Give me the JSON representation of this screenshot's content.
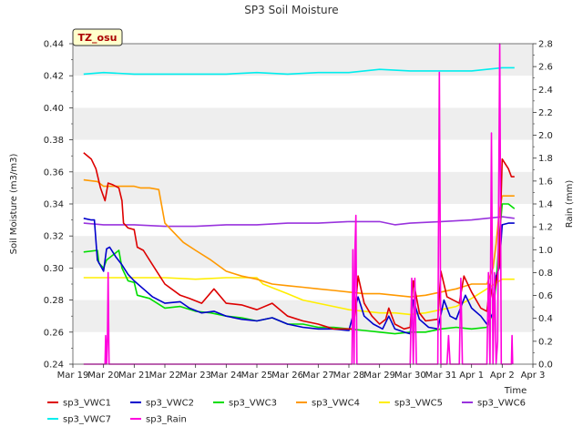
{
  "chart_data": {
    "type": "line",
    "title": "SP3 Soil Moisture",
    "badge": "TZ_osu",
    "xlabel": "Time",
    "ylabel_left": "Soil Moisture (m3/m3)",
    "ylabel_right": "Rain (mm)",
    "x_ticks": [
      "Mar 19",
      "Mar 20",
      "Mar 21",
      "Mar 22",
      "Mar 23",
      "Mar 24",
      "Mar 25",
      "Mar 26",
      "Mar 27",
      "Mar 28",
      "Mar 29",
      "Mar 30",
      "Mar 31",
      "Apr 1",
      "Apr 2",
      "Apr 3"
    ],
    "xlim": [
      0,
      15
    ],
    "ylim_left": [
      0.24,
      0.44
    ],
    "y_ticks_left": [
      "0.24",
      "0.26",
      "0.28",
      "0.30",
      "0.32",
      "0.34",
      "0.36",
      "0.38",
      "0.40",
      "0.42",
      "0.44"
    ],
    "ylim_right": [
      0.0,
      2.8
    ],
    "y_ticks_right": [
      "0.0",
      "0.2",
      "0.4",
      "0.6",
      "0.8",
      "1.0",
      "1.2",
      "1.4",
      "1.6",
      "1.8",
      "2.0",
      "2.2",
      "2.4",
      "2.6",
      "2.8"
    ],
    "grid": "horizontal bands",
    "legend_position": "bottom",
    "series": [
      {
        "name": "sp3_VWC1",
        "color": "#dd0000",
        "axis": "left",
        "points": [
          [
            0.35,
            0.372
          ],
          [
            0.6,
            0.368
          ],
          [
            0.75,
            0.362
          ],
          [
            0.9,
            0.35
          ],
          [
            1.05,
            0.342
          ],
          [
            1.15,
            0.353
          ],
          [
            1.3,
            0.352
          ],
          [
            1.5,
            0.35
          ],
          [
            1.6,
            0.342
          ],
          [
            1.65,
            0.328
          ],
          [
            1.8,
            0.325
          ],
          [
            2.0,
            0.324
          ],
          [
            2.1,
            0.313
          ],
          [
            2.3,
            0.311
          ],
          [
            2.6,
            0.302
          ],
          [
            3.0,
            0.29
          ],
          [
            3.5,
            0.283
          ],
          [
            3.8,
            0.281
          ],
          [
            4.2,
            0.278
          ],
          [
            4.6,
            0.287
          ],
          [
            5.0,
            0.278
          ],
          [
            5.5,
            0.277
          ],
          [
            6.0,
            0.274
          ],
          [
            6.5,
            0.278
          ],
          [
            7.0,
            0.27
          ],
          [
            7.5,
            0.267
          ],
          [
            8.0,
            0.265
          ],
          [
            8.5,
            0.262
          ],
          [
            9.0,
            0.262
          ],
          [
            9.15,
            0.262
          ],
          [
            9.3,
            0.295
          ],
          [
            9.5,
            0.278
          ],
          [
            9.75,
            0.27
          ],
          [
            10.0,
            0.265
          ],
          [
            10.2,
            0.268
          ],
          [
            10.3,
            0.275
          ],
          [
            10.5,
            0.265
          ],
          [
            10.8,
            0.262
          ],
          [
            11.0,
            0.263
          ],
          [
            11.1,
            0.292
          ],
          [
            11.3,
            0.272
          ],
          [
            11.5,
            0.267
          ],
          [
            11.9,
            0.268
          ],
          [
            12.0,
            0.298
          ],
          [
            12.2,
            0.282
          ],
          [
            12.4,
            0.28
          ],
          [
            12.6,
            0.278
          ],
          [
            12.75,
            0.295
          ],
          [
            13.0,
            0.285
          ],
          [
            13.3,
            0.275
          ],
          [
            13.5,
            0.273
          ],
          [
            13.6,
            0.29
          ],
          [
            13.7,
            0.28
          ],
          [
            13.9,
            0.302
          ],
          [
            14.0,
            0.368
          ],
          [
            14.2,
            0.362
          ],
          [
            14.3,
            0.357
          ],
          [
            14.4,
            0.357
          ]
        ]
      },
      {
        "name": "sp3_VWC2",
        "color": "#0000cc",
        "axis": "left",
        "points": [
          [
            0.35,
            0.331
          ],
          [
            0.6,
            0.33
          ],
          [
            0.7,
            0.33
          ],
          [
            0.8,
            0.305
          ],
          [
            1.0,
            0.298
          ],
          [
            1.1,
            0.312
          ],
          [
            1.2,
            0.313
          ],
          [
            1.4,
            0.307
          ],
          [
            1.6,
            0.302
          ],
          [
            1.8,
            0.296
          ],
          [
            2.0,
            0.292
          ],
          [
            2.3,
            0.287
          ],
          [
            2.6,
            0.282
          ],
          [
            3.0,
            0.278
          ],
          [
            3.5,
            0.279
          ],
          [
            3.8,
            0.275
          ],
          [
            4.2,
            0.272
          ],
          [
            4.6,
            0.273
          ],
          [
            5.0,
            0.27
          ],
          [
            5.5,
            0.268
          ],
          [
            6.0,
            0.267
          ],
          [
            6.5,
            0.269
          ],
          [
            7.0,
            0.265
          ],
          [
            7.5,
            0.263
          ],
          [
            8.0,
            0.262
          ],
          [
            8.5,
            0.262
          ],
          [
            9.0,
            0.261
          ],
          [
            9.3,
            0.282
          ],
          [
            9.5,
            0.27
          ],
          [
            9.8,
            0.265
          ],
          [
            10.1,
            0.262
          ],
          [
            10.3,
            0.27
          ],
          [
            10.5,
            0.262
          ],
          [
            10.8,
            0.26
          ],
          [
            11.0,
            0.259
          ],
          [
            11.1,
            0.28
          ],
          [
            11.3,
            0.268
          ],
          [
            11.6,
            0.263
          ],
          [
            11.9,
            0.262
          ],
          [
            12.1,
            0.28
          ],
          [
            12.3,
            0.27
          ],
          [
            12.5,
            0.268
          ],
          [
            12.8,
            0.283
          ],
          [
            13.0,
            0.275
          ],
          [
            13.3,
            0.27
          ],
          [
            13.5,
            0.265
          ],
          [
            13.7,
            0.272
          ],
          [
            13.8,
            0.295
          ],
          [
            13.9,
            0.3
          ],
          [
            14.0,
            0.327
          ],
          [
            14.2,
            0.328
          ],
          [
            14.4,
            0.328
          ]
        ]
      },
      {
        "name": "sp3_VWC3",
        "color": "#00dd00",
        "axis": "left",
        "points": [
          [
            0.35,
            0.31
          ],
          [
            0.8,
            0.311
          ],
          [
            0.85,
            0.303
          ],
          [
            1.0,
            0.3
          ],
          [
            1.1,
            0.305
          ],
          [
            1.3,
            0.308
          ],
          [
            1.5,
            0.311
          ],
          [
            1.6,
            0.3
          ],
          [
            1.8,
            0.292
          ],
          [
            2.0,
            0.291
          ],
          [
            2.1,
            0.283
          ],
          [
            2.5,
            0.281
          ],
          [
            3.0,
            0.275
          ],
          [
            3.5,
            0.276
          ],
          [
            4.0,
            0.273
          ],
          [
            4.5,
            0.272
          ],
          [
            5.0,
            0.27
          ],
          [
            5.5,
            0.269
          ],
          [
            6.0,
            0.267
          ],
          [
            6.5,
            0.269
          ],
          [
            7.0,
            0.265
          ],
          [
            7.5,
            0.265
          ],
          [
            8.0,
            0.263
          ],
          [
            8.5,
            0.263
          ],
          [
            9.0,
            0.262
          ],
          [
            9.5,
            0.261
          ],
          [
            10.0,
            0.26
          ],
          [
            10.5,
            0.259
          ],
          [
            11.0,
            0.26
          ],
          [
            11.5,
            0.26
          ],
          [
            12.0,
            0.262
          ],
          [
            12.5,
            0.263
          ],
          [
            13.0,
            0.262
          ],
          [
            13.5,
            0.263
          ],
          [
            13.7,
            0.272
          ],
          [
            13.8,
            0.29
          ],
          [
            13.9,
            0.318
          ],
          [
            14.0,
            0.34
          ],
          [
            14.2,
            0.34
          ],
          [
            14.4,
            0.337
          ]
        ]
      },
      {
        "name": "sp3_VWC4",
        "color": "#ff9900",
        "axis": "left",
        "points": [
          [
            0.35,
            0.355
          ],
          [
            0.8,
            0.354
          ],
          [
            1.0,
            0.351
          ],
          [
            1.5,
            0.351
          ],
          [
            2.0,
            0.351
          ],
          [
            2.2,
            0.35
          ],
          [
            2.5,
            0.35
          ],
          [
            2.8,
            0.349
          ],
          [
            3.0,
            0.328
          ],
          [
            3.3,
            0.322
          ],
          [
            3.6,
            0.316
          ],
          [
            4.0,
            0.311
          ],
          [
            4.5,
            0.305
          ],
          [
            5.0,
            0.298
          ],
          [
            5.5,
            0.295
          ],
          [
            6.0,
            0.293
          ],
          [
            6.5,
            0.29
          ],
          [
            7.0,
            0.289
          ],
          [
            7.5,
            0.288
          ],
          [
            8.0,
            0.287
          ],
          [
            8.5,
            0.286
          ],
          [
            9.0,
            0.285
          ],
          [
            9.5,
            0.284
          ],
          [
            10.0,
            0.284
          ],
          [
            10.5,
            0.283
          ],
          [
            11.0,
            0.282
          ],
          [
            11.5,
            0.283
          ],
          [
            12.0,
            0.285
          ],
          [
            12.5,
            0.287
          ],
          [
            13.0,
            0.29
          ],
          [
            13.5,
            0.29
          ],
          [
            13.7,
            0.3
          ],
          [
            13.8,
            0.315
          ],
          [
            13.9,
            0.335
          ],
          [
            14.0,
            0.345
          ],
          [
            14.2,
            0.345
          ],
          [
            14.4,
            0.345
          ]
        ]
      },
      {
        "name": "sp3_VWC5",
        "color": "#ffee00",
        "axis": "left",
        "points": [
          [
            0.35,
            0.294
          ],
          [
            1.0,
            0.294
          ],
          [
            2.0,
            0.294
          ],
          [
            3.0,
            0.294
          ],
          [
            4.0,
            0.293
          ],
          [
            5.0,
            0.294
          ],
          [
            6.0,
            0.294
          ],
          [
            6.2,
            0.29
          ],
          [
            7.0,
            0.284
          ],
          [
            7.5,
            0.28
          ],
          [
            8.0,
            0.278
          ],
          [
            8.5,
            0.276
          ],
          [
            9.0,
            0.274
          ],
          [
            9.5,
            0.273
          ],
          [
            10.0,
            0.272
          ],
          [
            10.5,
            0.272
          ],
          [
            11.0,
            0.271
          ],
          [
            11.5,
            0.272
          ],
          [
            12.0,
            0.274
          ],
          [
            12.5,
            0.276
          ],
          [
            13.0,
            0.281
          ],
          [
            13.5,
            0.287
          ],
          [
            14.0,
            0.293
          ],
          [
            14.4,
            0.293
          ]
        ]
      },
      {
        "name": "sp3_VWC6",
        "color": "#9933dd",
        "axis": "left",
        "points": [
          [
            0.35,
            0.328
          ],
          [
            1.0,
            0.327
          ],
          [
            2.0,
            0.327
          ],
          [
            3.0,
            0.326
          ],
          [
            4.0,
            0.326
          ],
          [
            5.0,
            0.327
          ],
          [
            6.0,
            0.327
          ],
          [
            7.0,
            0.328
          ],
          [
            8.0,
            0.328
          ],
          [
            9.0,
            0.329
          ],
          [
            9.5,
            0.329
          ],
          [
            10.0,
            0.329
          ],
          [
            10.5,
            0.327
          ],
          [
            11.0,
            0.328
          ],
          [
            12.0,
            0.329
          ],
          [
            13.0,
            0.33
          ],
          [
            14.0,
            0.332
          ],
          [
            14.4,
            0.331
          ]
        ]
      },
      {
        "name": "sp3_VWC7",
        "color": "#00eeee",
        "axis": "left",
        "points": [
          [
            0.35,
            0.421
          ],
          [
            1.0,
            0.422
          ],
          [
            2.0,
            0.421
          ],
          [
            3.0,
            0.421
          ],
          [
            4.0,
            0.421
          ],
          [
            5.0,
            0.421
          ],
          [
            6.0,
            0.422
          ],
          [
            7.0,
            0.421
          ],
          [
            8.0,
            0.422
          ],
          [
            9.0,
            0.422
          ],
          [
            10.0,
            0.424
          ],
          [
            11.0,
            0.423
          ],
          [
            12.0,
            0.423
          ],
          [
            13.0,
            0.423
          ],
          [
            14.0,
            0.425
          ],
          [
            14.4,
            0.425
          ]
        ]
      },
      {
        "name": "sp3_Rain",
        "color": "#ff00dd",
        "axis": "right",
        "points": [
          [
            0.35,
            0.0
          ],
          [
            1.05,
            0.0
          ],
          [
            1.07,
            0.25
          ],
          [
            1.1,
            0.0
          ],
          [
            1.13,
            0.25
          ],
          [
            1.15,
            0.8
          ],
          [
            1.18,
            0.0
          ],
          [
            1.22,
            0.0
          ],
          [
            2.0,
            0.0
          ],
          [
            4.0,
            0.0
          ],
          [
            6.0,
            0.0
          ],
          [
            8.0,
            0.0
          ],
          [
            9.0,
            0.0
          ],
          [
            9.1,
            0.0
          ],
          [
            9.13,
            1.0
          ],
          [
            9.17,
            0.0
          ],
          [
            9.2,
            1.0
          ],
          [
            9.23,
            1.3
          ],
          [
            9.26,
            0.0
          ],
          [
            9.3,
            0.0
          ],
          [
            10.5,
            0.0
          ],
          [
            11.0,
            0.0
          ],
          [
            11.05,
            0.75
          ],
          [
            11.1,
            0.0
          ],
          [
            11.15,
            0.75
          ],
          [
            11.2,
            0.0
          ],
          [
            11.5,
            0.0
          ],
          [
            11.9,
            0.0
          ],
          [
            11.95,
            2.55
          ],
          [
            12.0,
            0.0
          ],
          [
            12.2,
            0.0
          ],
          [
            12.25,
            0.25
          ],
          [
            12.3,
            0.0
          ],
          [
            12.6,
            0.0
          ],
          [
            12.65,
            0.75
          ],
          [
            12.7,
            0.0
          ],
          [
            13.5,
            0.0
          ],
          [
            13.55,
            0.8
          ],
          [
            13.6,
            0.0
          ],
          [
            13.65,
            2.02
          ],
          [
            13.7,
            0.0
          ],
          [
            13.75,
            0.8
          ],
          [
            13.8,
            0.0
          ],
          [
            13.85,
            0.2
          ],
          [
            13.92,
            2.8
          ],
          [
            13.97,
            0.0
          ],
          [
            14.1,
            0.0
          ],
          [
            14.3,
            0.0
          ],
          [
            14.32,
            0.25
          ],
          [
            14.34,
            0.0
          ]
        ]
      }
    ]
  }
}
